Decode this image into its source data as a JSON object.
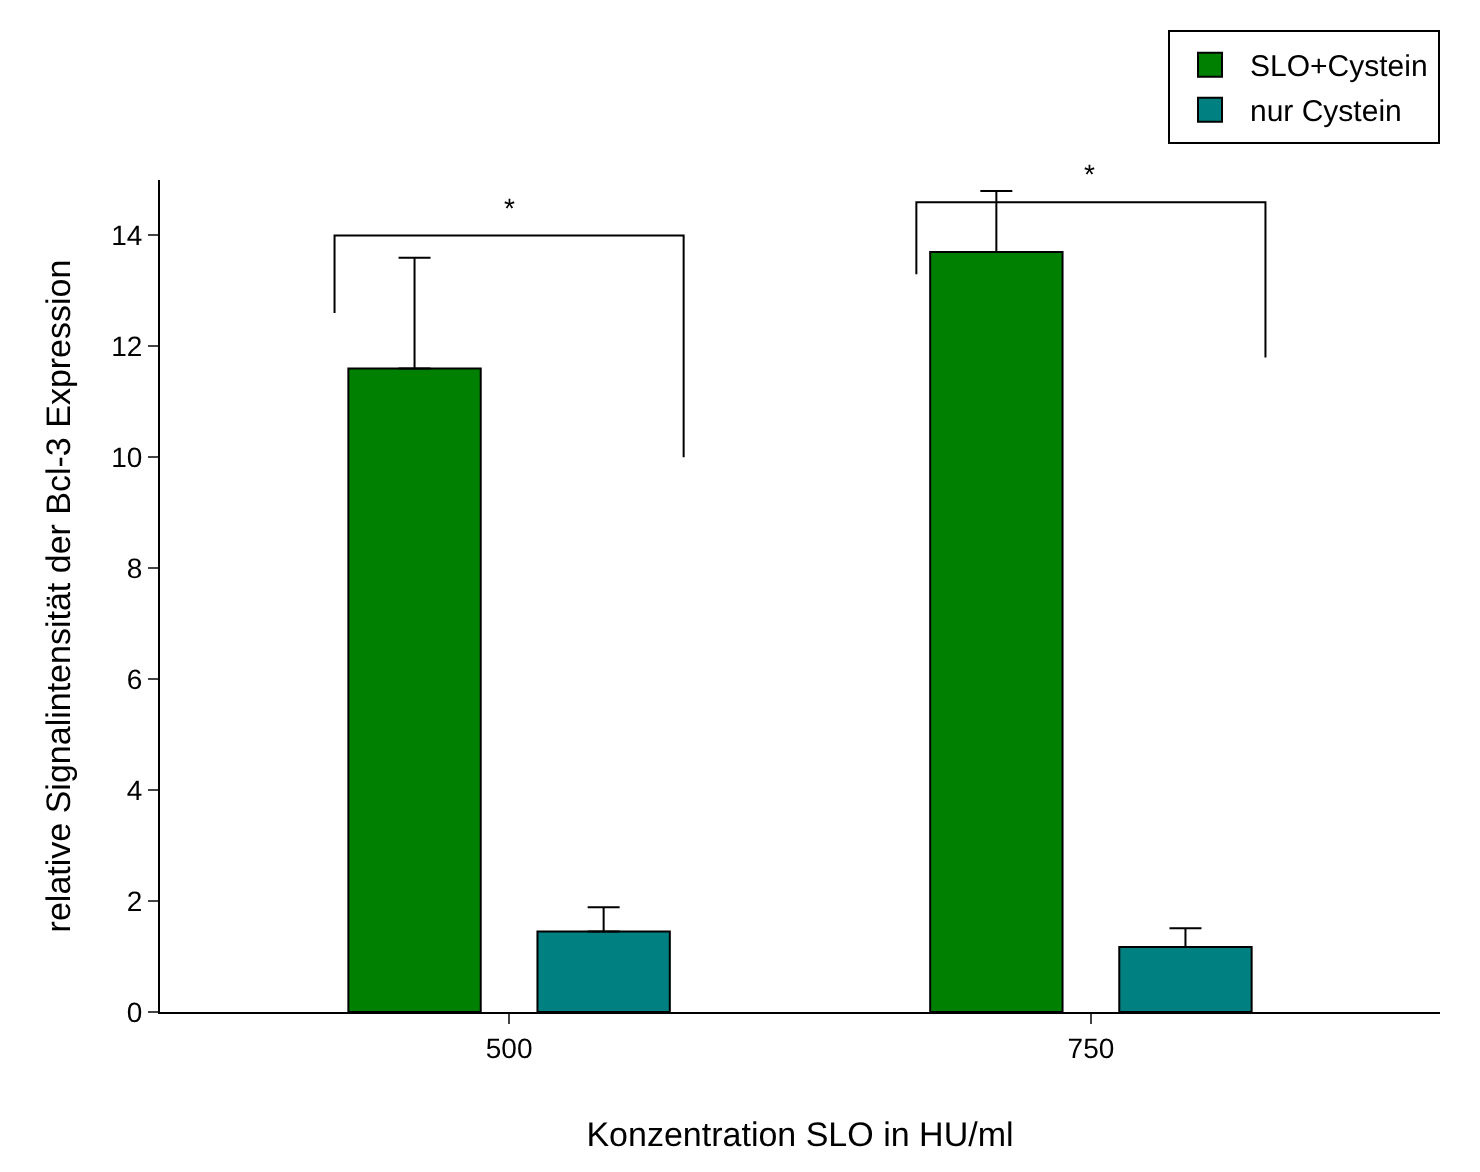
{
  "chart_data": {
    "type": "bar",
    "xlabel": "Konzentration SLO in HU/ml",
    "ylabel": "relative Signalintensität der Bcl-3 Expression",
    "categories": [
      "500",
      "750"
    ],
    "series": [
      {
        "name": "SLO+Cystein",
        "color": "#008000",
        "values": [
          11.6,
          13.7
        ],
        "errors": [
          [
            11.6,
            13.6
          ],
          [
            13.7,
            14.8
          ]
        ]
      },
      {
        "name": "nur Cystein",
        "color": "#008080",
        "values": [
          1.45,
          1.17
        ],
        "errors": [
          [
            1.45,
            1.89
          ],
          [
            1.17,
            1.51
          ]
        ]
      }
    ],
    "ylim": [
      0,
      15
    ],
    "yticks": [
      0,
      2,
      4,
      6,
      8,
      10,
      12,
      14
    ],
    "legend": "top right",
    "annotations": [
      "*",
      "*"
    ]
  }
}
